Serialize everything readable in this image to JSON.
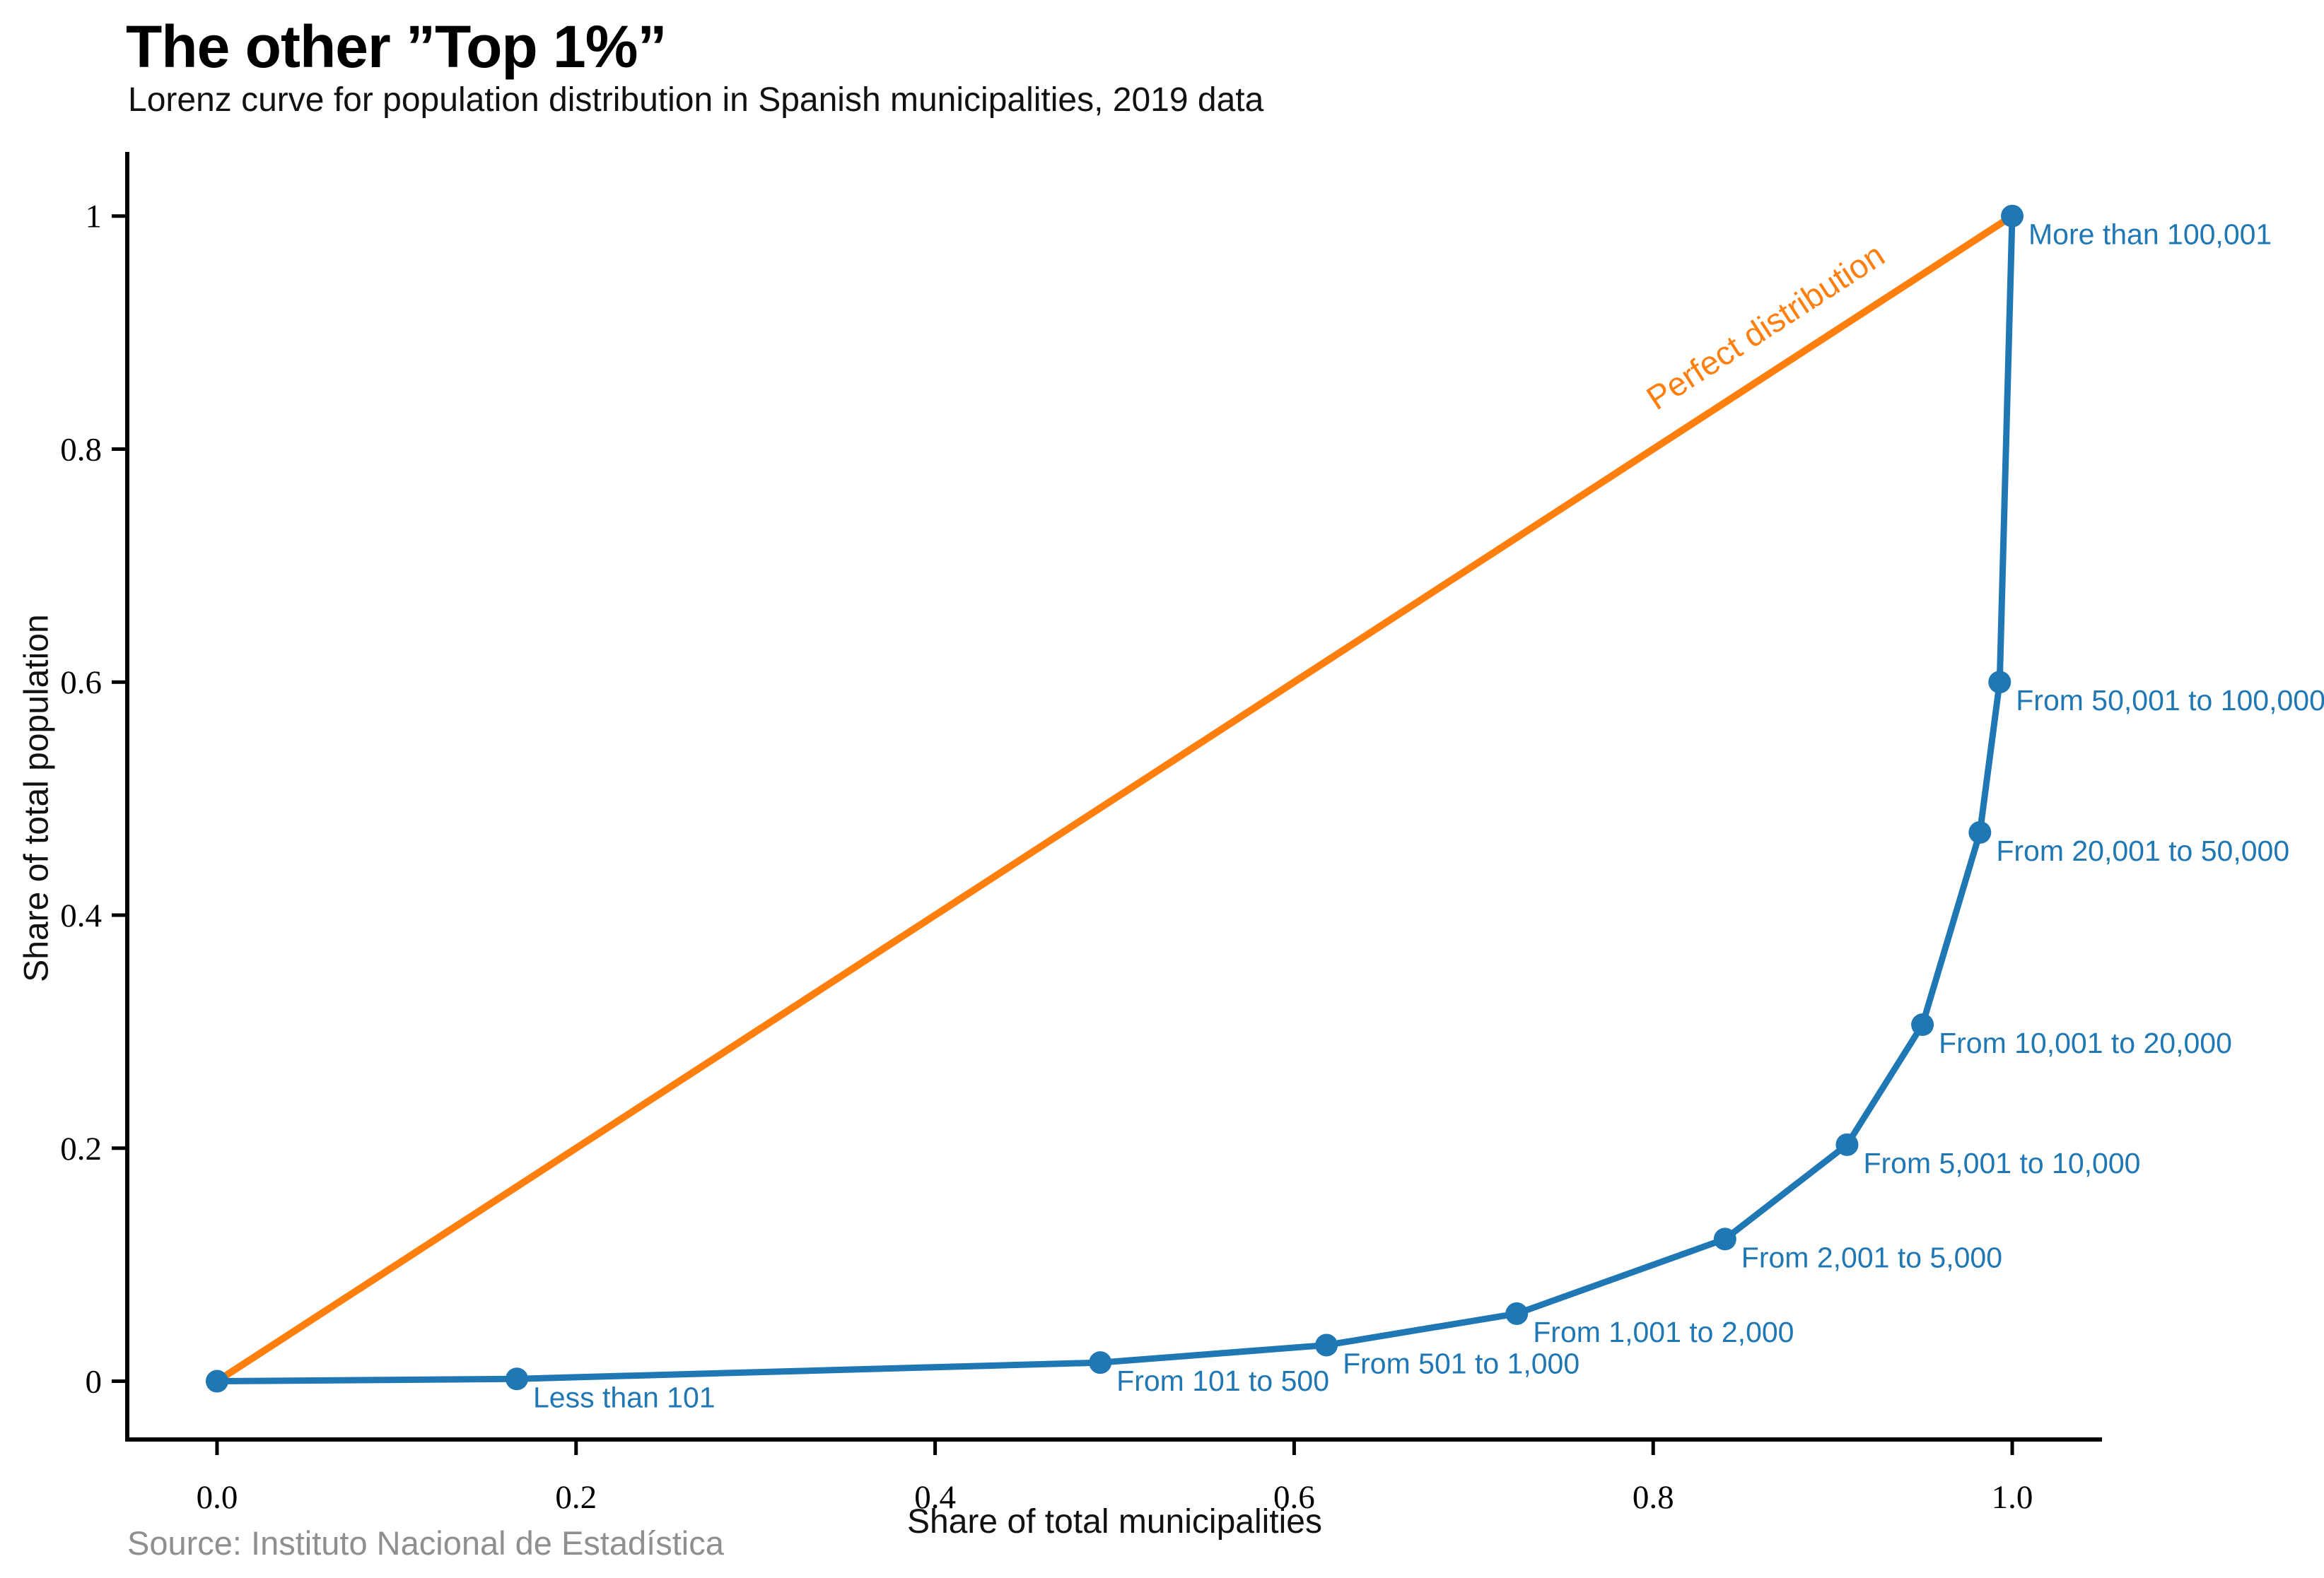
{
  "header": {
    "title": "The other ”Top 1%”",
    "subtitle": "Lorenz curve for population distribution in Spanish municipalities, 2019 data"
  },
  "footer": {
    "source": "Source: Instituto Nacional de Estadística"
  },
  "colors": {
    "lorenz_blue": "#1f77b4",
    "perfect_orange": "#ff7f0e",
    "axis_black": "#000000",
    "source_gray": "#8f8f8f"
  },
  "chart_data": {
    "type": "line",
    "title": "The other ”Top 1%”",
    "subtitle": "Lorenz curve for population distribution in Spanish municipalities, 2019 data",
    "xlabel": "Share of total municipalities",
    "ylabel": "Share of total population",
    "xlim": [
      -0.05,
      1.05
    ],
    "ylim": [
      -0.05,
      1.055
    ],
    "grid": false,
    "legend": "none (inline annotations)",
    "x_ticks": [
      0.0,
      0.2,
      0.4,
      0.6,
      0.8,
      1.0
    ],
    "x_tick_labels": [
      "0.0",
      "0.2",
      "0.4",
      "0.6",
      "0.8",
      "1.0"
    ],
    "y_ticks": [
      0,
      0.2,
      0.4,
      0.6,
      0.8,
      1
    ],
    "y_tick_labels": [
      "0",
      "0.2",
      "0.4",
      "0.6",
      "0.8",
      "1"
    ],
    "series": [
      {
        "name": "Lorenz curve",
        "type": "line+markers",
        "color": "#1f77b4",
        "points": [
          {
            "x": 0.0,
            "y": 0.0,
            "label": ""
          },
          {
            "x": 0.167,
            "y": 0.002,
            "label": "Less than 101"
          },
          {
            "x": 0.492,
            "y": 0.016,
            "label": "From 101 to 500"
          },
          {
            "x": 0.618,
            "y": 0.031,
            "label": "From 501 to 1,000"
          },
          {
            "x": 0.724,
            "y": 0.058,
            "label": "From 1,001 to 2,000"
          },
          {
            "x": 0.84,
            "y": 0.122,
            "label": "From 2,001 to 5,000"
          },
          {
            "x": 0.908,
            "y": 0.203,
            "label": "From 5,001 to 10,000"
          },
          {
            "x": 0.95,
            "y": 0.306,
            "label": "From 10,001 to 20,000"
          },
          {
            "x": 0.982,
            "y": 0.471,
            "label": "From 20,001 to 50,000"
          },
          {
            "x": 0.993,
            "y": 0.6,
            "label": "From 50,001 to 100,000"
          },
          {
            "x": 1.0,
            "y": 1.0,
            "label": "More than 100,001"
          }
        ]
      },
      {
        "name": "Perfect distribution",
        "type": "line",
        "color": "#ff7f0e",
        "points": [
          {
            "x": 0.0,
            "y": 0.0
          },
          {
            "x": 1.0,
            "y": 1.0
          }
        ],
        "line_label": {
          "text": "Perfect distribution",
          "x": 0.866,
          "y": 0.897,
          "rotation_deg": -33
        }
      }
    ]
  }
}
